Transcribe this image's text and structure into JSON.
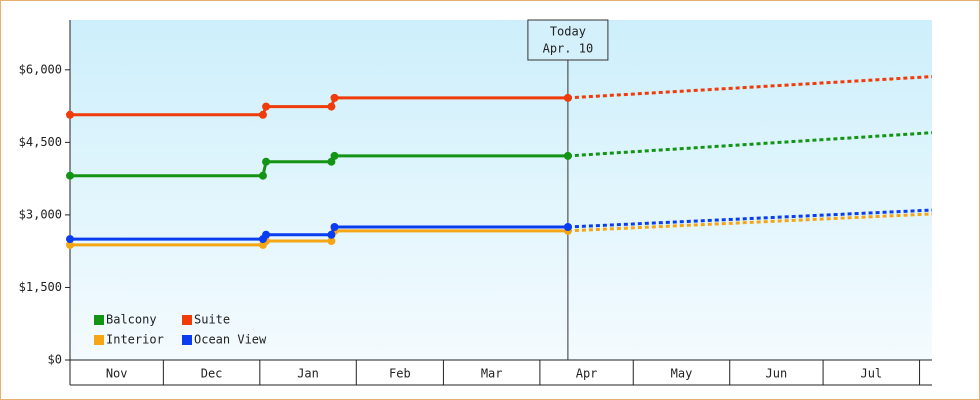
{
  "chart_data": {
    "type": "line",
    "x": [
      0,
      62,
      63,
      84,
      85,
      160,
      277
    ],
    "xlim": [
      0,
      277
    ],
    "xticks": [
      0,
      30,
      61,
      92,
      120,
      151,
      181,
      212,
      242,
      273
    ],
    "categories": [
      "Nov",
      "Dec",
      "Jan",
      "Feb",
      "Mar",
      "Apr",
      "May",
      "Jun",
      "Jul"
    ],
    "ylim": [
      0,
      7030
    ],
    "yticks": [
      {
        "value": 0,
        "label": "$0"
      },
      {
        "value": 1500,
        "label": "$1,500"
      },
      {
        "value": 3000,
        "label": "$3,000"
      },
      {
        "value": 4500,
        "label": "$4,500"
      },
      {
        "value": 6000,
        "label": "$6,000"
      }
    ],
    "today": {
      "x": 160,
      "label": "Today",
      "date": "Apr. 10"
    },
    "legend": "bottom-left",
    "series": [
      {
        "name": "Balcony",
        "color": "#149414",
        "values": [
          3810,
          3810,
          4100,
          4100,
          4220,
          4220,
          4700
        ]
      },
      {
        "name": "Suite",
        "color": "#f03c0a",
        "values": [
          5070,
          5070,
          5240,
          5240,
          5420,
          5420,
          5860
        ]
      },
      {
        "name": "Interior",
        "color": "#f5a614",
        "values": [
          2380,
          2380,
          2460,
          2460,
          2670,
          2670,
          3020
        ]
      },
      {
        "name": "Ocean View",
        "color": "#0a3cf0",
        "values": [
          2500,
          2500,
          2590,
          2590,
          2750,
          2750,
          3100
        ]
      }
    ]
  }
}
